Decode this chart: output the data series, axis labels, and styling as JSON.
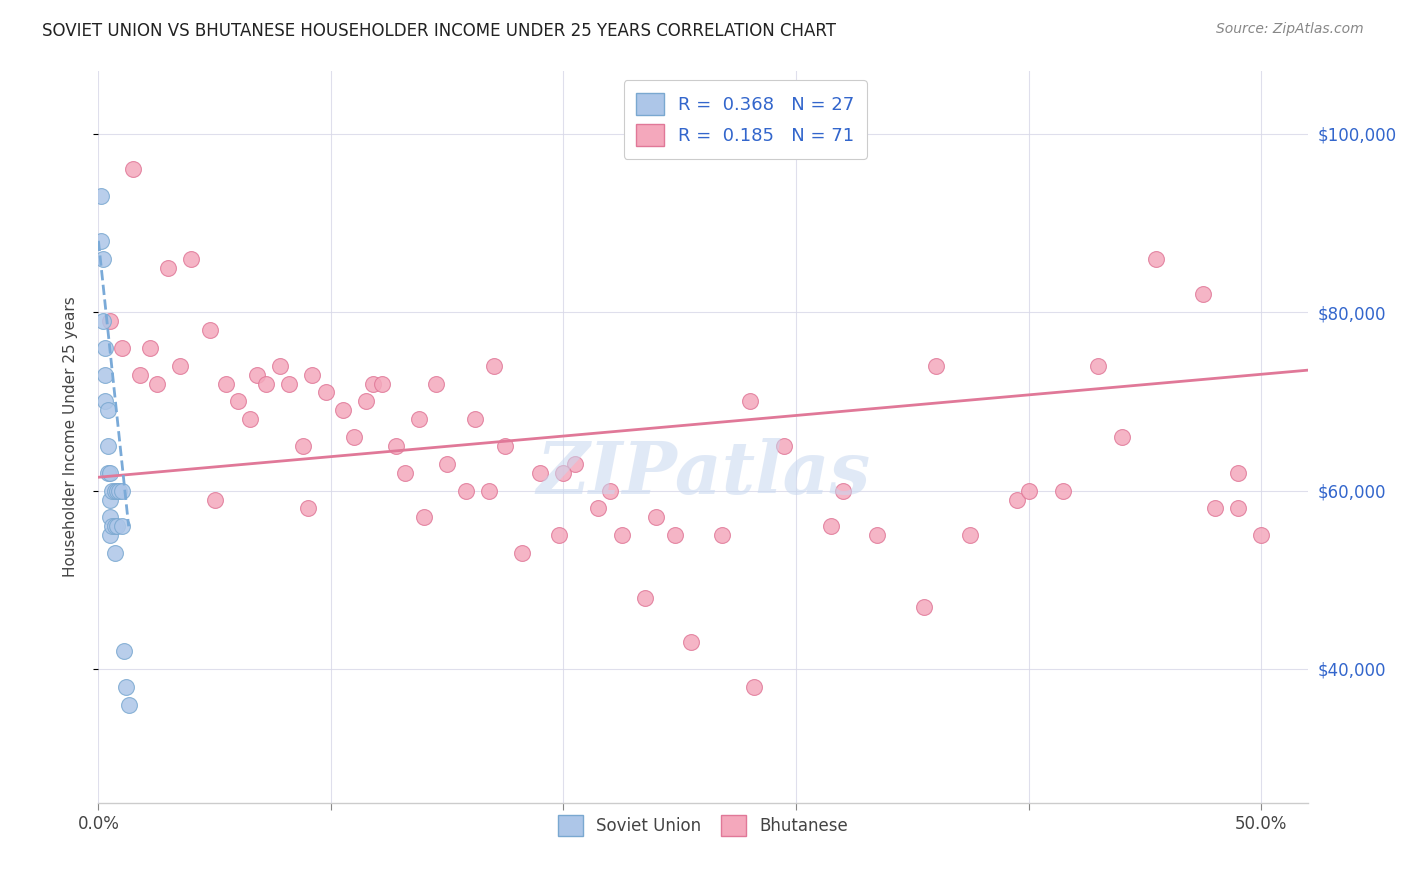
{
  "title": "SOVIET UNION VS BHUTANESE HOUSEHOLDER INCOME UNDER 25 YEARS CORRELATION CHART",
  "source": "Source: ZipAtlas.com",
  "ylabel": "Householder Income Under 25 years",
  "legend_soviet_r": "0.368",
  "legend_soviet_n": "27",
  "legend_bhutanese_r": "0.185",
  "legend_bhutanese_n": "71",
  "soviet_color": "#adc6e8",
  "bhutanese_color": "#f4a8bc",
  "soviet_edge_color": "#7aa8d0",
  "bhutanese_edge_color": "#e07898",
  "soviet_line_color": "#7aaad8",
  "bhutanese_line_color": "#e07898",
  "legend_r_color": "#3366cc",
  "title_color": "#222222",
  "source_color": "#888888",
  "right_tick_color": "#3366cc",
  "watermark_color": "#c8d8f0",
  "background_color": "#ffffff",
  "grid_color": "#d8d8e8",
  "xlim": [
    0.0,
    0.52
  ],
  "ylim": [
    25000,
    107000
  ],
  "soviet_points_x": [
    0.001,
    0.001,
    0.002,
    0.002,
    0.003,
    0.003,
    0.003,
    0.004,
    0.004,
    0.004,
    0.005,
    0.005,
    0.005,
    0.005,
    0.006,
    0.006,
    0.007,
    0.007,
    0.007,
    0.008,
    0.008,
    0.009,
    0.01,
    0.01,
    0.011,
    0.012,
    0.013
  ],
  "soviet_points_y": [
    93000,
    88000,
    86000,
    79000,
    76000,
    73000,
    70000,
    69000,
    65000,
    62000,
    62000,
    59000,
    57000,
    55000,
    60000,
    56000,
    60000,
    56000,
    53000,
    60000,
    56000,
    60000,
    60000,
    56000,
    42000,
    38000,
    36000
  ],
  "bhutanese_points_x": [
    0.005,
    0.01,
    0.015,
    0.018,
    0.022,
    0.025,
    0.03,
    0.035,
    0.04,
    0.048,
    0.055,
    0.06,
    0.065,
    0.068,
    0.072,
    0.078,
    0.082,
    0.088,
    0.092,
    0.098,
    0.105,
    0.11,
    0.115,
    0.118,
    0.122,
    0.128,
    0.132,
    0.138,
    0.145,
    0.15,
    0.158,
    0.162,
    0.168,
    0.175,
    0.182,
    0.19,
    0.198,
    0.205,
    0.215,
    0.225,
    0.235,
    0.248,
    0.255,
    0.268,
    0.282,
    0.295,
    0.315,
    0.335,
    0.355,
    0.375,
    0.395,
    0.415,
    0.43,
    0.455,
    0.475,
    0.49,
    0.05,
    0.09,
    0.14,
    0.17,
    0.2,
    0.24,
    0.28,
    0.32,
    0.36,
    0.4,
    0.44,
    0.48,
    0.49,
    0.5,
    0.22
  ],
  "bhutanese_points_y": [
    79000,
    76000,
    96000,
    73000,
    76000,
    72000,
    85000,
    74000,
    86000,
    78000,
    72000,
    70000,
    68000,
    73000,
    72000,
    74000,
    72000,
    65000,
    73000,
    71000,
    69000,
    66000,
    70000,
    72000,
    72000,
    65000,
    62000,
    68000,
    72000,
    63000,
    60000,
    68000,
    60000,
    65000,
    53000,
    62000,
    55000,
    63000,
    58000,
    55000,
    48000,
    55000,
    43000,
    55000,
    38000,
    65000,
    56000,
    55000,
    47000,
    55000,
    59000,
    60000,
    74000,
    86000,
    82000,
    58000,
    59000,
    58000,
    57000,
    74000,
    62000,
    57000,
    70000,
    60000,
    74000,
    60000,
    66000,
    58000,
    62000,
    55000,
    60000
  ],
  "bhu_trend_x0": 0.0,
  "bhu_trend_x1": 0.52,
  "bhu_trend_y0": 61500,
  "bhu_trend_y1": 73500,
  "sov_trend_x0": 0.0,
  "sov_trend_x1": 0.013,
  "sov_trend_y0": 88000,
  "sov_trend_y1": 56000
}
